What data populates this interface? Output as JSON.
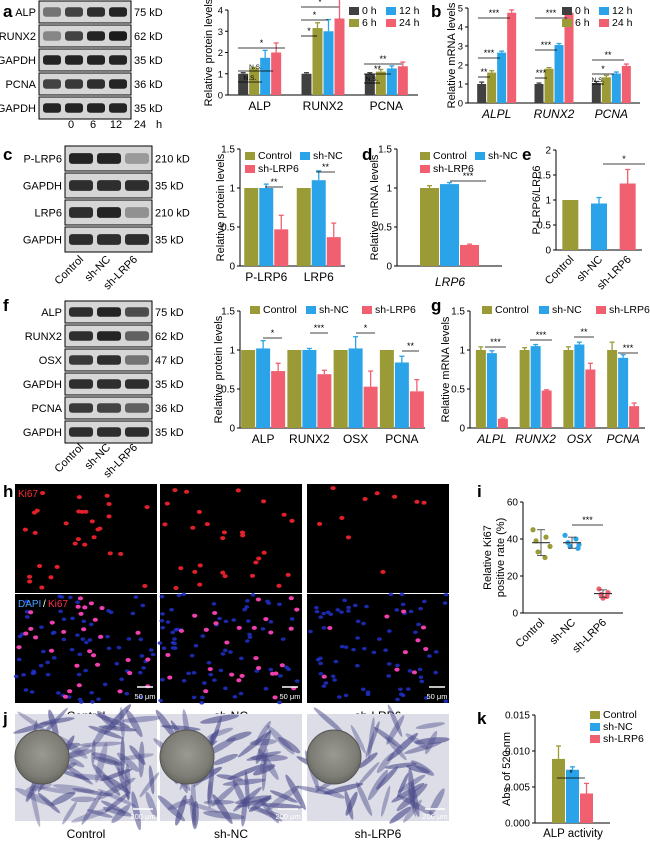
{
  "colors": {
    "olive": "#9a9a36",
    "blue": "#2aa3e8",
    "pink": "#f06070",
    "gray": "#404040",
    "axis": "#000000"
  },
  "series_names": {
    "time": [
      "0 h",
      "12 h",
      "6 h",
      "24 h"
    ],
    "group": [
      "Control",
      "sh-NC",
      "sh-LRP6"
    ]
  },
  "panel_letters": [
    "a",
    "b",
    "c",
    "d",
    "e",
    "f",
    "g",
    "h",
    "i",
    "j",
    "k"
  ],
  "blots": {
    "a": {
      "rows": [
        "ALP",
        "RUNX2",
        "GAPDH",
        "PCNA",
        "GAPDH"
      ],
      "sizes": [
        "75 kD",
        "62 kD",
        "35 kD",
        "36 kD",
        "35 kD"
      ],
      "lanes": [
        "0",
        "6",
        "12",
        "24",
        "h"
      ]
    },
    "c": {
      "rows": [
        "P-LRP6",
        "GAPDH",
        "LRP6",
        "GAPDH"
      ],
      "sizes": [
        "210 kD",
        "35 kD",
        "210 kD",
        "35 kD"
      ],
      "lanes": [
        "Control",
        "sh-NC",
        "sh-LRP6"
      ]
    },
    "f": {
      "rows": [
        "ALP",
        "RUNX2",
        "OSX",
        "GAPDH",
        "PCNA",
        "GAPDH"
      ],
      "sizes": [
        "75 kD",
        "62 kD",
        "47 kD",
        "35 kD",
        "36 kD",
        "35 kD"
      ],
      "lanes": [
        "Control",
        "sh-NC",
        "sh-LRP6"
      ]
    }
  },
  "micro": {
    "ki67_label": "Ki67",
    "dapi_label": "DAPI",
    "slash": "/",
    "h_scale": "50 μm",
    "h_groups": [
      "Control",
      "sh-NC",
      "sh-LRP6"
    ],
    "j_scale": "200 μm",
    "j_groups": [
      "Control",
      "sh-NC",
      "sh-LRP6"
    ]
  },
  "chart_data": [
    {
      "id": "a",
      "type": "bar",
      "ylabel": "Relative protein levels",
      "ylim": [
        0,
        4
      ],
      "yticks": [
        0,
        1,
        2,
        3,
        4
      ],
      "categories": [
        "ALP",
        "RUNX2",
        "PCNA"
      ],
      "series": [
        {
          "name": "0 h",
          "values": [
            1.0,
            1.0,
            1.0
          ],
          "errors": [
            0.05,
            0.05,
            0.05
          ]
        },
        {
          "name": "6 h",
          "values": [
            1.25,
            3.15,
            1.1
          ],
          "errors": [
            0.05,
            0.25,
            0.1
          ]
        },
        {
          "name": "12 h",
          "values": [
            1.75,
            3.0,
            1.25
          ],
          "errors": [
            0.35,
            0.55,
            0.12
          ]
        },
        {
          "name": "24 h",
          "values": [
            2.0,
            3.6,
            1.35
          ],
          "errors": [
            0.45,
            1.1,
            0.2
          ]
        }
      ],
      "annotations": [
        "N.S.",
        "N.S.",
        "*",
        "*",
        "*",
        "*",
        "N.S.",
        "**",
        "**"
      ]
    },
    {
      "id": "b",
      "type": "bar",
      "ylabel": "Relative mRNA levels",
      "ylim": [
        0,
        5
      ],
      "yticks": [
        0,
        1,
        2,
        3,
        4,
        5
      ],
      "categories": [
        "ALPL",
        "RUNX2",
        "PCNA"
      ],
      "series": [
        {
          "name": "0 h",
          "values": [
            1.0,
            1.0,
            1.05
          ],
          "errors": [
            0.1,
            0.05,
            0.08
          ]
        },
        {
          "name": "6 h",
          "values": [
            1.6,
            1.8,
            1.35
          ],
          "errors": [
            0.1,
            0.06,
            0.1
          ]
        },
        {
          "name": "12 h",
          "values": [
            2.65,
            3.05,
            1.55
          ],
          "errors": [
            0.08,
            0.08,
            0.08
          ]
        },
        {
          "name": "24 h",
          "values": [
            4.75,
            4.75,
            1.95
          ],
          "errors": [
            0.15,
            0.1,
            0.1
          ]
        }
      ],
      "annotations": [
        "**",
        "***",
        "***",
        "***",
        "***",
        "***",
        "N.S.",
        "*",
        "**"
      ]
    },
    {
      "id": "c",
      "type": "bar",
      "ylabel": "Relative protein levels",
      "ylim": [
        0,
        1.5
      ],
      "yticks": [
        0.0,
        0.5,
        1.0,
        1.5
      ],
      "categories": [
        "P-LRP6",
        "LRP6"
      ],
      "series": [
        {
          "name": "Control",
          "values": [
            1.0,
            1.0
          ],
          "errors": [
            0,
            0
          ]
        },
        {
          "name": "sh-NC",
          "values": [
            1.0,
            1.1
          ],
          "errors": [
            0.05,
            0.12
          ]
        },
        {
          "name": "sh-LRP6",
          "values": [
            0.47,
            0.37
          ],
          "errors": [
            0.18,
            0.18
          ]
        }
      ],
      "annotations": [
        "**",
        "**"
      ]
    },
    {
      "id": "d",
      "type": "bar",
      "ylabel": "Relative mRNA levels",
      "ylim": [
        0,
        1.5
      ],
      "yticks": [
        0.0,
        0.5,
        1.0,
        1.5
      ],
      "categories": [
        "LRP6"
      ],
      "series": [
        {
          "name": "Control",
          "values": [
            1.0
          ],
          "errors": [
            0.03
          ]
        },
        {
          "name": "sh-NC",
          "values": [
            1.05
          ],
          "errors": [
            0.02
          ]
        },
        {
          "name": "sh-LRP6",
          "values": [
            0.27
          ],
          "errors": [
            0.01
          ]
        }
      ],
      "annotations": [
        "***"
      ]
    },
    {
      "id": "e",
      "type": "bar",
      "ylabel": "P-LRP6/LRP6",
      "ylim": [
        0,
        2
      ],
      "yticks": [
        0.0,
        0.5,
        1.0,
        1.5,
        2.0
      ],
      "categories": [
        "Control",
        "sh-NC",
        "sh-LRP6"
      ],
      "values": [
        1.0,
        0.93,
        1.33
      ],
      "errors": [
        0,
        0.12,
        0.28
      ],
      "annotations": [
        "*"
      ]
    },
    {
      "id": "f",
      "type": "bar",
      "ylabel": "Relative protein levels",
      "ylim": [
        0,
        1.5
      ],
      "yticks": [
        0.0,
        0.5,
        1.0,
        1.5
      ],
      "categories": [
        "ALP",
        "RUNX2",
        "OSX",
        "PCNA"
      ],
      "series": [
        {
          "name": "Control",
          "values": [
            1.0,
            1.0,
            1.0,
            1.0
          ],
          "errors": [
            0,
            0,
            0,
            0
          ]
        },
        {
          "name": "sh-NC",
          "values": [
            1.02,
            1.0,
            1.02,
            0.84
          ],
          "errors": [
            0.1,
            0.02,
            0.15,
            0.08
          ]
        },
        {
          "name": "sh-LRP6",
          "values": [
            0.73,
            0.69,
            0.53,
            0.47
          ],
          "errors": [
            0.1,
            0.05,
            0.2,
            0.15
          ]
        }
      ],
      "annotations": [
        "*",
        "***",
        "*",
        "**"
      ]
    },
    {
      "id": "g",
      "type": "bar",
      "ylabel": "Relative mRNA levels",
      "ylim": [
        0,
        1.5
      ],
      "yticks": [
        0.0,
        0.5,
        1.0,
        1.5
      ],
      "categories": [
        "ALPL",
        "RUNX2",
        "OSX",
        "PCNA"
      ],
      "series": [
        {
          "name": "Control",
          "values": [
            1.0,
            1.0,
            1.0,
            1.0
          ],
          "errors": [
            0.04,
            0.03,
            0.04,
            0.1
          ]
        },
        {
          "name": "sh-NC",
          "values": [
            0.96,
            1.05,
            1.07,
            0.9
          ],
          "errors": [
            0.03,
            0.02,
            0.03,
            0.04
          ]
        },
        {
          "name": "sh-LRP6",
          "values": [
            0.12,
            0.48,
            0.75,
            0.28
          ],
          "errors": [
            0.01,
            0.01,
            0.08,
            0.04
          ]
        }
      ],
      "annotations": [
        "***",
        "***",
        "**",
        "***"
      ]
    },
    {
      "id": "i",
      "type": "scatter",
      "ylabel": "Relative Ki67 positive rate (%)",
      "ylim": [
        0,
        60
      ],
      "yticks": [
        0,
        20,
        40,
        60
      ],
      "categories": [
        "Control",
        "sh-NC",
        "sh-LRP6"
      ],
      "points": [
        [
          45,
          41,
          39,
          36,
          33,
          30
        ],
        [
          42,
          40,
          38,
          37,
          36,
          35
        ],
        [
          13,
          11,
          10,
          9,
          8
        ]
      ],
      "means": [
        38,
        38,
        10.5
      ],
      "errors": [
        7,
        3,
        2
      ],
      "annotations": [
        "***"
      ]
    },
    {
      "id": "k",
      "type": "bar",
      "ylabel": "Abs. of 520 nm",
      "xlabel": "ALP activity",
      "ylim": [
        0,
        0.015
      ],
      "yticks": [
        "0.000",
        "0.005",
        "0.010",
        "0.015"
      ],
      "categories": [
        "ALP activity"
      ],
      "series": [
        {
          "name": "Control",
          "values": [
            0.0089
          ],
          "errors": [
            0.0018
          ]
        },
        {
          "name": "sh-NC",
          "values": [
            0.0074
          ],
          "errors": [
            0.0004
          ]
        },
        {
          "name": "sh-LRP6",
          "values": [
            0.0041
          ],
          "errors": [
            0.0014
          ]
        }
      ],
      "annotations": [
        "*"
      ]
    }
  ]
}
